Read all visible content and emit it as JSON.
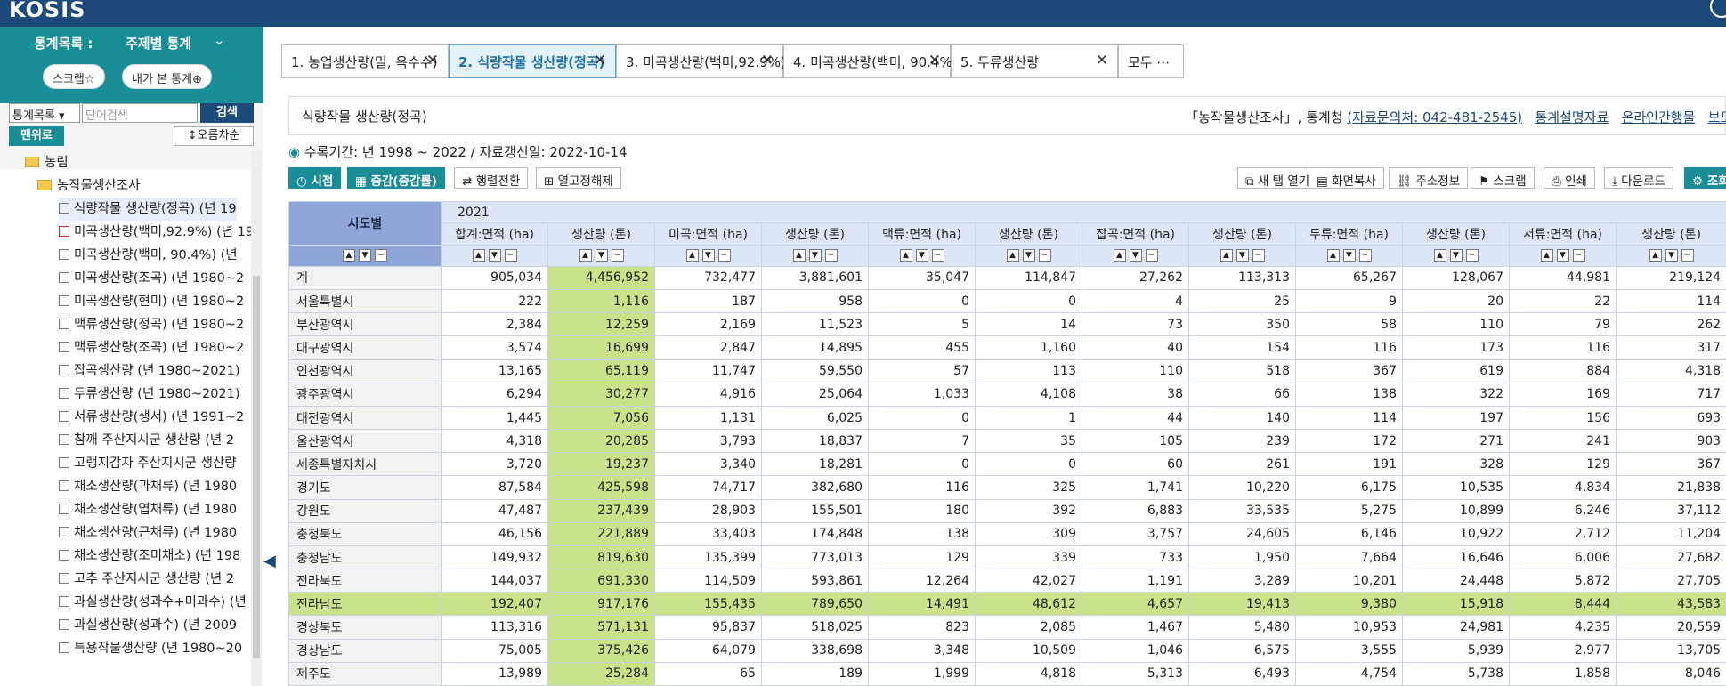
{
  "header": {
    "logo": "KOSIS"
  },
  "sidebar": {
    "title": "통계목록 :",
    "subtitle": "주제별 통계",
    "scrap_label": "스크랩☆",
    "my_stats_label": "내가 본 통계⊕",
    "select_value": "통계목록",
    "search_placeholder": "단어검색",
    "search_label": "검색",
    "top_label": "맨위로",
    "sort_label": "오름차순",
    "tree": [
      {
        "label": "농림",
        "type": "folder"
      },
      {
        "label": "농작물생산조사",
        "type": "folder"
      },
      {
        "label": "식량작물 생산량(정곡) (년 19",
        "type": "item",
        "selected": true
      },
      {
        "label": "미곡생산량(백미,92.9%) (년 19",
        "type": "item"
      },
      {
        "label": "미곡생산량(백미, 90.4%) (년",
        "type": "item"
      },
      {
        "label": "미곡생산량(조곡) (년 1980~2",
        "type": "item"
      },
      {
        "label": "미곡생산량(현미) (년 1980~2",
        "type": "item"
      },
      {
        "label": "맥류생산량(정곡) (년 1980~2",
        "type": "item"
      },
      {
        "label": "맥류생산량(조곡) (년 1980~2",
        "type": "item"
      },
      {
        "label": "잡곡생산량 (년 1980~2021)",
        "type": "item"
      },
      {
        "label": "두류생산량 (년 1980~2021)",
        "type": "item"
      },
      {
        "label": "서류생산량(생서) (년 1991~2",
        "type": "item"
      },
      {
        "label": "참깨 주산지시군 생산량 (년 2",
        "type": "item"
      },
      {
        "label": "고랭지감자 주산지시군 생산량",
        "type": "item"
      },
      {
        "label": "채소생산량(과채류) (년 1980",
        "type": "item"
      },
      {
        "label": "채소생산량(엽채류) (년 1980",
        "type": "item"
      },
      {
        "label": "채소생산량(근채류) (년 1980",
        "type": "item"
      },
      {
        "label": "채소생산량(조미채소) (년 198",
        "type": "item"
      },
      {
        "label": "고추 주산지시군 생산량 (년 2",
        "type": "item"
      },
      {
        "label": "과실생산량(성과수+미과수) (년",
        "type": "item"
      },
      {
        "label": "과실생산량(성과수) (년 2009",
        "type": "item"
      },
      {
        "label": "특용작물생산량 (년 1980~20",
        "type": "item"
      }
    ]
  },
  "tabs": [
    {
      "label": "1. 농업생산량(밀, 옥수수)",
      "active": false
    },
    {
      "label": "2. 식량작물 생산량(정곡)",
      "active": true
    },
    {
      "label": "3. 미곡생산량(백미,92.9%)",
      "active": false
    },
    {
      "label": "4. 미곡생산량(백미, 90.4%)",
      "active": false
    },
    {
      "label": "5. 두류생산량",
      "active": false
    },
    {
      "label": "모두 ⋯",
      "active": false
    }
  ],
  "content": {
    "title": "식량작물 생산량(정곡)",
    "source": "「농작물생산조사」, 통계청",
    "contact": "(자료문의처: 042-481-2545)",
    "link_desc": "통계설명자료",
    "link_online": "온라인간행물",
    "link_press": "보도",
    "period": "수록기간: 년 1998 ~ 2022 / 자료갱신일: 2022-10-14"
  },
  "toolbar": {
    "view": "시점",
    "increase": "증감(증감률)",
    "pivot": "행렬전환",
    "unfix": "열고정해제",
    "newtab": "새 탭 열기",
    "copy": "화면복사",
    "address": "주소정보",
    "scrap": "스크랩",
    "print": "인쇄",
    "download": "다운로드",
    "query": "조회"
  },
  "table": {
    "rowhead": "시도별",
    "year": "2021",
    "columns": [
      "합계:면적 (ha)",
      "생산량 (톤)",
      "미곡:면적 (ha)",
      "생산량 (톤)",
      "맥류:면적 (ha)",
      "생산량 (톤)",
      "잡곡:면적 (ha)",
      "생산량 (톤)",
      "두류:면적 (ha)",
      "생산량 (톤)",
      "서류:면적 (ha)",
      "생산량 (톤)"
    ],
    "rows": [
      [
        "계",
        "905,034",
        "4,456,952",
        "732,477",
        "3,881,601",
        "35,047",
        "114,847",
        "27,262",
        "113,313",
        "65,267",
        "128,067",
        "44,981",
        "219,124"
      ],
      [
        "서울특별시",
        "222",
        "1,116",
        "187",
        "958",
        "0",
        "0",
        "4",
        "25",
        "9",
        "20",
        "22",
        "114"
      ],
      [
        "부산광역시",
        "2,384",
        "12,259",
        "2,169",
        "11,523",
        "5",
        "14",
        "73",
        "350",
        "58",
        "110",
        "79",
        "262"
      ],
      [
        "대구광역시",
        "3,574",
        "16,699",
        "2,847",
        "14,895",
        "455",
        "1,160",
        "40",
        "154",
        "116",
        "173",
        "116",
        "317"
      ],
      [
        "인천광역시",
        "13,165",
        "65,119",
        "11,747",
        "59,550",
        "57",
        "113",
        "110",
        "518",
        "367",
        "619",
        "884",
        "4,318"
      ],
      [
        "광주광역시",
        "6,294",
        "30,277",
        "4,916",
        "25,064",
        "1,033",
        "4,108",
        "38",
        "66",
        "138",
        "322",
        "169",
        "717"
      ],
      [
        "대전광역시",
        "1,445",
        "7,056",
        "1,131",
        "6,025",
        "0",
        "1",
        "44",
        "140",
        "114",
        "197",
        "156",
        "693"
      ],
      [
        "울산광역시",
        "4,318",
        "20,285",
        "3,793",
        "18,837",
        "7",
        "35",
        "105",
        "239",
        "172",
        "271",
        "241",
        "903"
      ],
      [
        "세종특별자치시",
        "3,720",
        "19,237",
        "3,340",
        "18,281",
        "0",
        "0",
        "60",
        "261",
        "191",
        "328",
        "129",
        "367"
      ],
      [
        "경기도",
        "87,584",
        "425,598",
        "74,717",
        "382,680",
        "116",
        "325",
        "1,741",
        "10,220",
        "6,175",
        "10,535",
        "4,834",
        "21,838"
      ],
      [
        "강원도",
        "47,487",
        "237,439",
        "28,903",
        "155,501",
        "180",
        "392",
        "6,883",
        "33,535",
        "5,275",
        "10,899",
        "6,246",
        "37,112"
      ],
      [
        "충청북도",
        "46,156",
        "221,889",
        "33,403",
        "174,848",
        "138",
        "309",
        "3,757",
        "24,605",
        "6,146",
        "10,922",
        "2,712",
        "11,204"
      ],
      [
        "충청남도",
        "149,932",
        "819,630",
        "135,399",
        "773,013",
        "129",
        "339",
        "733",
        "1,950",
        "7,664",
        "16,646",
        "6,006",
        "27,682"
      ],
      [
        "전라북도",
        "144,037",
        "691,330",
        "114,509",
        "593,861",
        "12,264",
        "42,027",
        "1,191",
        "3,289",
        "10,201",
        "24,448",
        "5,872",
        "27,705"
      ],
      [
        "전라남도",
        "192,407",
        "917,176",
        "155,435",
        "789,650",
        "14,491",
        "48,612",
        "4,657",
        "19,413",
        "9,380",
        "15,918",
        "8,444",
        "43,583"
      ],
      [
        "경상북도",
        "113,316",
        "571,131",
        "95,837",
        "518,025",
        "823",
        "2,085",
        "1,467",
        "5,480",
        "10,953",
        "24,981",
        "4,235",
        "20,559"
      ],
      [
        "경상남도",
        "75,005",
        "375,426",
        "64,079",
        "338,698",
        "3,348",
        "10,509",
        "1,046",
        "6,575",
        "3,555",
        "5,939",
        "2,977",
        "13,705"
      ],
      [
        "제주도",
        "13,989",
        "25,284",
        "65",
        "189",
        "1,999",
        "4,818",
        "5,313",
        "6,493",
        "4,754",
        "5,738",
        "1,858",
        "8,046"
      ]
    ],
    "highlight_row": "전라남도",
    "highlight_color": "#c8e389"
  }
}
